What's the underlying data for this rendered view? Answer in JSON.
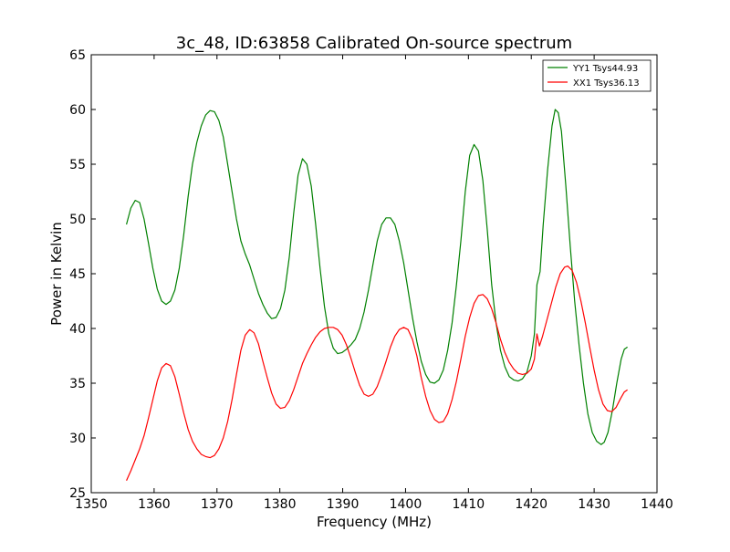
{
  "chart_data": {
    "type": "line",
    "title": "3c_48, ID:63858 Calibrated On-source spectrum",
    "xlabel": "Frequency (MHz)",
    "ylabel": "Power in Kelvin",
    "xlim": [
      1350,
      1440
    ],
    "ylim": [
      25,
      65
    ],
    "xticks": [
      1350,
      1360,
      1370,
      1380,
      1390,
      1400,
      1410,
      1420,
      1430,
      1440
    ],
    "yticks": [
      25,
      30,
      35,
      40,
      45,
      50,
      55,
      60,
      65
    ],
    "grid": false,
    "legend_position": "top-right",
    "series": [
      {
        "name": "YY1 Tsys44.93",
        "color": "#008000",
        "points": [
          [
            1355.6,
            49.5
          ],
          [
            1356.3,
            51.0
          ],
          [
            1357.0,
            51.7
          ],
          [
            1357.7,
            51.5
          ],
          [
            1358.4,
            50.0
          ],
          [
            1359.1,
            47.8
          ],
          [
            1359.8,
            45.5
          ],
          [
            1360.5,
            43.6
          ],
          [
            1361.2,
            42.5
          ],
          [
            1361.9,
            42.2
          ],
          [
            1362.6,
            42.5
          ],
          [
            1363.3,
            43.5
          ],
          [
            1364.0,
            45.5
          ],
          [
            1364.7,
            48.5
          ],
          [
            1365.4,
            52.0
          ],
          [
            1366.1,
            55.0
          ],
          [
            1366.8,
            57.0
          ],
          [
            1367.5,
            58.5
          ],
          [
            1368.2,
            59.5
          ],
          [
            1368.9,
            59.9
          ],
          [
            1369.6,
            59.8
          ],
          [
            1370.3,
            59.0
          ],
          [
            1371.0,
            57.5
          ],
          [
            1371.7,
            55.0
          ],
          [
            1372.4,
            52.5
          ],
          [
            1373.1,
            50.0
          ],
          [
            1373.8,
            48.0
          ],
          [
            1374.5,
            46.8
          ],
          [
            1375.2,
            45.8
          ],
          [
            1375.9,
            44.5
          ],
          [
            1376.6,
            43.2
          ],
          [
            1377.3,
            42.2
          ],
          [
            1378.0,
            41.4
          ],
          [
            1378.7,
            40.9
          ],
          [
            1379.4,
            41.0
          ],
          [
            1380.1,
            41.8
          ],
          [
            1380.8,
            43.5
          ],
          [
            1381.5,
            46.5
          ],
          [
            1382.2,
            50.5
          ],
          [
            1382.9,
            54.0
          ],
          [
            1383.6,
            55.5
          ],
          [
            1384.3,
            55.0
          ],
          [
            1385.0,
            53.0
          ],
          [
            1385.7,
            49.5
          ],
          [
            1386.4,
            45.5
          ],
          [
            1387.1,
            42.0
          ],
          [
            1387.8,
            39.5
          ],
          [
            1388.5,
            38.2
          ],
          [
            1389.2,
            37.7
          ],
          [
            1389.9,
            37.8
          ],
          [
            1390.6,
            38.1
          ],
          [
            1391.3,
            38.5
          ],
          [
            1392.0,
            39.0
          ],
          [
            1392.7,
            40.0
          ],
          [
            1393.4,
            41.5
          ],
          [
            1394.1,
            43.5
          ],
          [
            1394.8,
            45.8
          ],
          [
            1395.5,
            48.0
          ],
          [
            1396.2,
            49.5
          ],
          [
            1396.9,
            50.1
          ],
          [
            1397.6,
            50.1
          ],
          [
            1398.3,
            49.5
          ],
          [
            1399.0,
            48.0
          ],
          [
            1399.7,
            46.0
          ],
          [
            1400.4,
            43.5
          ],
          [
            1401.1,
            41.0
          ],
          [
            1401.8,
            38.8
          ],
          [
            1402.5,
            37.0
          ],
          [
            1403.2,
            35.8
          ],
          [
            1403.9,
            35.1
          ],
          [
            1404.6,
            35.0
          ],
          [
            1405.3,
            35.3
          ],
          [
            1406.0,
            36.2
          ],
          [
            1406.7,
            38.0
          ],
          [
            1407.4,
            40.5
          ],
          [
            1408.1,
            44.0
          ],
          [
            1408.8,
            48.0
          ],
          [
            1409.5,
            52.5
          ],
          [
            1410.2,
            55.8
          ],
          [
            1410.9,
            56.8
          ],
          [
            1411.6,
            56.2
          ],
          [
            1412.3,
            53.5
          ],
          [
            1413.0,
            49.0
          ],
          [
            1413.7,
            44.0
          ],
          [
            1414.4,
            40.5
          ],
          [
            1415.1,
            38.0
          ],
          [
            1415.8,
            36.5
          ],
          [
            1416.5,
            35.6
          ],
          [
            1417.2,
            35.3
          ],
          [
            1417.9,
            35.2
          ],
          [
            1418.6,
            35.4
          ],
          [
            1419.3,
            36.0
          ],
          [
            1420.0,
            37.5
          ],
          [
            1420.5,
            39.5
          ],
          [
            1420.9,
            44.0
          ],
          [
            1421.4,
            45.2
          ],
          [
            1421.9,
            49.5
          ],
          [
            1422.6,
            54.5
          ],
          [
            1423.3,
            58.5
          ],
          [
            1423.8,
            60.0
          ],
          [
            1424.3,
            59.7
          ],
          [
            1424.8,
            58.0
          ],
          [
            1425.5,
            53.0
          ],
          [
            1426.2,
            47.5
          ],
          [
            1426.9,
            42.5
          ],
          [
            1427.6,
            38.5
          ],
          [
            1428.3,
            35.0
          ],
          [
            1429.0,
            32.2
          ],
          [
            1429.7,
            30.5
          ],
          [
            1430.4,
            29.7
          ],
          [
            1431.1,
            29.4
          ],
          [
            1431.6,
            29.6
          ],
          [
            1432.2,
            30.5
          ],
          [
            1432.9,
            32.5
          ],
          [
            1433.6,
            35.0
          ],
          [
            1434.3,
            37.2
          ],
          [
            1434.8,
            38.1
          ],
          [
            1435.3,
            38.3
          ]
        ]
      },
      {
        "name": "XX1 Tsys36.13",
        "color": "#ff0000",
        "points": [
          [
            1355.6,
            26.1
          ],
          [
            1356.3,
            27.0
          ],
          [
            1357.0,
            28.0
          ],
          [
            1357.7,
            29.0
          ],
          [
            1358.4,
            30.2
          ],
          [
            1359.1,
            31.8
          ],
          [
            1359.8,
            33.5
          ],
          [
            1360.5,
            35.2
          ],
          [
            1361.2,
            36.4
          ],
          [
            1361.9,
            36.8
          ],
          [
            1362.6,
            36.6
          ],
          [
            1363.3,
            35.6
          ],
          [
            1364.0,
            34.0
          ],
          [
            1364.7,
            32.3
          ],
          [
            1365.4,
            30.8
          ],
          [
            1366.1,
            29.7
          ],
          [
            1366.8,
            29.0
          ],
          [
            1367.5,
            28.5
          ],
          [
            1368.2,
            28.3
          ],
          [
            1368.9,
            28.2
          ],
          [
            1369.6,
            28.4
          ],
          [
            1370.3,
            29.0
          ],
          [
            1371.0,
            30.0
          ],
          [
            1371.7,
            31.5
          ],
          [
            1372.4,
            33.5
          ],
          [
            1373.1,
            35.8
          ],
          [
            1373.8,
            38.0
          ],
          [
            1374.5,
            39.4
          ],
          [
            1375.2,
            39.9
          ],
          [
            1375.9,
            39.6
          ],
          [
            1376.6,
            38.6
          ],
          [
            1377.3,
            37.0
          ],
          [
            1378.0,
            35.5
          ],
          [
            1378.7,
            34.1
          ],
          [
            1379.4,
            33.1
          ],
          [
            1380.1,
            32.7
          ],
          [
            1380.8,
            32.8
          ],
          [
            1381.5,
            33.4
          ],
          [
            1382.2,
            34.4
          ],
          [
            1382.9,
            35.6
          ],
          [
            1383.6,
            36.8
          ],
          [
            1384.3,
            37.7
          ],
          [
            1385.0,
            38.5
          ],
          [
            1385.7,
            39.2
          ],
          [
            1386.4,
            39.7
          ],
          [
            1387.1,
            40.0
          ],
          [
            1387.8,
            40.1
          ],
          [
            1388.5,
            40.1
          ],
          [
            1389.2,
            39.9
          ],
          [
            1389.9,
            39.4
          ],
          [
            1390.6,
            38.5
          ],
          [
            1391.3,
            37.3
          ],
          [
            1392.0,
            36.0
          ],
          [
            1392.7,
            34.8
          ],
          [
            1393.4,
            34.0
          ],
          [
            1394.1,
            33.8
          ],
          [
            1394.8,
            34.0
          ],
          [
            1395.5,
            34.7
          ],
          [
            1396.2,
            35.8
          ],
          [
            1396.9,
            37.0
          ],
          [
            1397.6,
            38.3
          ],
          [
            1398.3,
            39.3
          ],
          [
            1399.0,
            39.9
          ],
          [
            1399.7,
            40.1
          ],
          [
            1400.4,
            39.9
          ],
          [
            1401.1,
            39.0
          ],
          [
            1401.8,
            37.5
          ],
          [
            1402.5,
            35.5
          ],
          [
            1403.2,
            33.8
          ],
          [
            1403.9,
            32.5
          ],
          [
            1404.6,
            31.7
          ],
          [
            1405.3,
            31.4
          ],
          [
            1406.0,
            31.5
          ],
          [
            1406.7,
            32.2
          ],
          [
            1407.4,
            33.5
          ],
          [
            1408.1,
            35.2
          ],
          [
            1408.8,
            37.2
          ],
          [
            1409.5,
            39.3
          ],
          [
            1410.2,
            41.0
          ],
          [
            1410.9,
            42.3
          ],
          [
            1411.6,
            43.0
          ],
          [
            1412.3,
            43.1
          ],
          [
            1413.0,
            42.7
          ],
          [
            1413.7,
            41.8
          ],
          [
            1414.4,
            40.5
          ],
          [
            1415.1,
            39.0
          ],
          [
            1415.8,
            37.8
          ],
          [
            1416.5,
            36.9
          ],
          [
            1417.2,
            36.3
          ],
          [
            1417.9,
            35.9
          ],
          [
            1418.6,
            35.8
          ],
          [
            1419.3,
            35.9
          ],
          [
            1420.0,
            36.3
          ],
          [
            1420.5,
            37.2
          ],
          [
            1420.9,
            39.5
          ],
          [
            1421.3,
            38.4
          ],
          [
            1421.8,
            39.3
          ],
          [
            1422.5,
            40.8
          ],
          [
            1423.2,
            42.3
          ],
          [
            1423.9,
            43.8
          ],
          [
            1424.6,
            45.0
          ],
          [
            1425.3,
            45.6
          ],
          [
            1425.8,
            45.7
          ],
          [
            1426.5,
            45.3
          ],
          [
            1427.2,
            44.2
          ],
          [
            1427.9,
            42.5
          ],
          [
            1428.6,
            40.5
          ],
          [
            1429.3,
            38.3
          ],
          [
            1430.0,
            36.2
          ],
          [
            1430.7,
            34.4
          ],
          [
            1431.4,
            33.1
          ],
          [
            1432.1,
            32.5
          ],
          [
            1432.8,
            32.4
          ],
          [
            1433.5,
            32.8
          ],
          [
            1434.2,
            33.6
          ],
          [
            1434.8,
            34.2
          ],
          [
            1435.3,
            34.4
          ]
        ]
      }
    ]
  }
}
